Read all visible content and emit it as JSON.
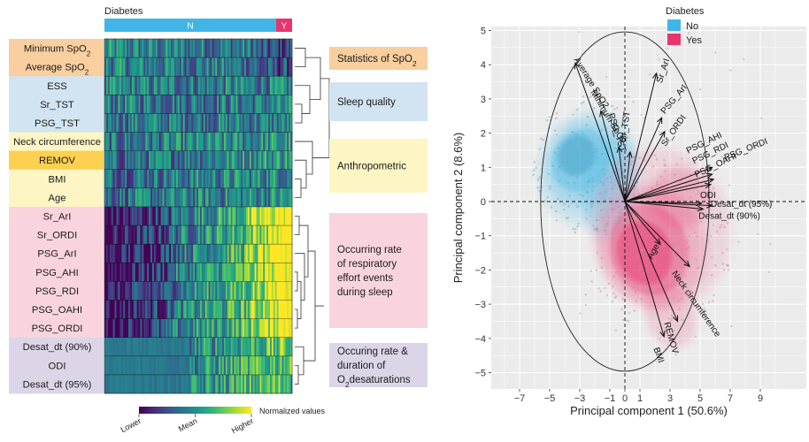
{
  "palette": {
    "viridis": [
      "#440154",
      "#482878",
      "#3e4989",
      "#31688e",
      "#26828e",
      "#1f9e89",
      "#35b779",
      "#6ece58",
      "#b5de2b",
      "#fde725"
    ],
    "diabetes_no": "#41b6e6",
    "diabetes_yes": "#e8356d",
    "group_spo2": "#f9cfa0",
    "group_sleep": "#d2e4f1",
    "group_anthro": "#fdf5c4",
    "group_remov": "#fcd050",
    "group_resp": "#f9d4de",
    "group_desat": "#dcd5e8"
  },
  "chart_data": [
    {
      "type": "heatmap",
      "top_bar": {
        "title": "Diabetes",
        "no_label": "N",
        "yes_label": "Y",
        "no_fraction": 0.915
      },
      "rows": [
        {
          "label": "Minimum SpO",
          "sub": "2",
          "group": "spo2"
        },
        {
          "label": "Average SpO",
          "sub": "2",
          "group": "spo2"
        },
        {
          "label": "ESS",
          "sub": "",
          "group": "sleep"
        },
        {
          "label": "Sr_TST",
          "sub": "",
          "group": "sleep"
        },
        {
          "label": "PSG_TST",
          "sub": "",
          "group": "sleep"
        },
        {
          "label": "Neck circumference",
          "sub": "",
          "group": "anthro"
        },
        {
          "label": "REMOV",
          "sub": "",
          "group": "remov"
        },
        {
          "label": "BMI",
          "sub": "",
          "group": "anthro"
        },
        {
          "label": "Age",
          "sub": "",
          "group": "anthro"
        },
        {
          "label": "Sr_ArI",
          "sub": "",
          "group": "resp"
        },
        {
          "label": "Sr_ORDI",
          "sub": "",
          "group": "resp"
        },
        {
          "label": "PSG_ArI",
          "sub": "",
          "group": "resp"
        },
        {
          "label": "PSG_AHI",
          "sub": "",
          "group": "resp"
        },
        {
          "label": "PSG_RDI",
          "sub": "",
          "group": "resp"
        },
        {
          "label": "PSG_OAHI",
          "sub": "",
          "group": "resp"
        },
        {
          "label": "PSG_ORDI",
          "sub": "",
          "group": "resp"
        },
        {
          "label": "Desat_dt (90%)",
          "sub": "",
          "group": "desat"
        },
        {
          "label": "ODI",
          "sub": "",
          "group": "desat"
        },
        {
          "label": "Desat_dt (95%)",
          "sub": "",
          "group": "desat"
        }
      ],
      "groups": [
        {
          "id": "spo2",
          "lines": [
            {
              "t": "Statistics of SpO",
              "sub": "2"
            }
          ]
        },
        {
          "id": "sleep",
          "lines": [
            {
              "t": "Sleep quality",
              "sub": ""
            }
          ]
        },
        {
          "id": "anthro",
          "lines": [
            {
              "t": "Anthropometric",
              "sub": ""
            }
          ]
        },
        {
          "id": "resp",
          "lines": [
            {
              "t": "Occurring rate",
              "sub": ""
            },
            {
              "t": "of respiratory",
              "sub": ""
            },
            {
              "t": "effort events",
              "sub": ""
            },
            {
              "t": "during sleep",
              "sub": ""
            }
          ]
        },
        {
          "id": "desat",
          "lines": [
            {
              "t": "Occuring rate &",
              "sub": ""
            },
            {
              "t": "duration of",
              "sub": ""
            },
            {
              "t": "O",
              "sub": "2",
              "tail": "desaturations"
            }
          ]
        }
      ],
      "legend": {
        "title": "Normalized values",
        "ticks": [
          "Lower",
          "Mean",
          "Higher"
        ]
      }
    },
    {
      "type": "scatter",
      "subtype": "pca-biplot",
      "legend": {
        "title": "Diabetes",
        "entries": [
          "No",
          "Yes"
        ],
        "placement": "top"
      },
      "xlabel": "Principal component 1 (50.6%)",
      "ylabel": "Principal component 2 (8.6%)",
      "xlim": [
        -8.5,
        10.5
      ],
      "ylim": [
        -5.2,
        5.2
      ],
      "xticks": [
        "−7",
        "−5",
        "−3",
        "−1",
        "0",
        "1",
        "3",
        "5",
        "7",
        "9"
      ],
      "yticks": [
        "5",
        "4",
        "3",
        "2",
        "1",
        "0",
        "−1",
        "−2",
        "−3",
        "−4",
        "−5"
      ],
      "circle_radius": 5.5,
      "loadings": [
        {
          "name": "Average SpO2",
          "x": -3.3,
          "y": 4.05
        },
        {
          "name": "Minimum SpO2",
          "x": -1.6,
          "y": 2.65
        },
        {
          "name": "PSG_TST",
          "x": -0.4,
          "y": 1.6
        },
        {
          "name": "Sr_TST",
          "x": 0.35,
          "y": 1.45
        },
        {
          "name": "Sr_ArI",
          "x": 2.1,
          "y": 3.75
        },
        {
          "name": "PSG_ArI",
          "x": 2.45,
          "y": 2.45
        },
        {
          "name": "Sr_ORDI",
          "x": 2.65,
          "y": 2.05
        },
        {
          "name": "PSG_AHI",
          "x": 5.8,
          "y": 1.0
        },
        {
          "name": "PSG_RDI",
          "x": 5.8,
          "y": 0.8
        },
        {
          "name": "PSG_ORDI",
          "x": 5.9,
          "y": 0.65
        },
        {
          "name": "PSG_OAHI",
          "x": 5.7,
          "y": 0.5
        },
        {
          "name": "ODI",
          "x": 5.1,
          "y": -0.05
        },
        {
          "name": "Desat_dt (95%)",
          "x": 5.8,
          "y": -0.12
        },
        {
          "name": "Desat_dt (90%)",
          "x": 5.2,
          "y": -0.22
        },
        {
          "name": "Age",
          "x": 2.35,
          "y": -1.25
        },
        {
          "name": "Neck circumference",
          "x": 4.3,
          "y": -1.9
        },
        {
          "name": "REMOV",
          "x": 3.5,
          "y": -3.5
        },
        {
          "name": "BMI",
          "x": 2.6,
          "y": -3.95
        }
      ],
      "loading_labels": [
        {
          "text": "Average SpO2",
          "x": -3.4,
          "y": 4.15,
          "rot": 58
        },
        {
          "text": "Minimum SpO2",
          "x": -2.3,
          "y": 3.2,
          "rot": 59
        },
        {
          "text": "PSG_TST",
          "x": -1.1,
          "y": 2.55,
          "rot": 72
        },
        {
          "text": "Sr_TST",
          "x": 0.05,
          "y": 1.75,
          "rot": -82
        },
        {
          "text": "Sr_ArI",
          "x": 2.45,
          "y": 3.45,
          "rot": -72
        },
        {
          "text": "PSG_ArI",
          "x": 2.65,
          "y": 2.55,
          "rot": -50
        },
        {
          "text": "Sr_ORDI",
          "x": 2.7,
          "y": 1.6,
          "rot": -55
        },
        {
          "text": "PSG_AHI",
          "x": 4.2,
          "y": 1.4,
          "rot": -26
        },
        {
          "text": "PSG_RDI",
          "x": 4.6,
          "y": 1.1,
          "rot": -26
        },
        {
          "text": "PSG_OAHI",
          "x": 4.75,
          "y": 0.7,
          "rot": -26
        },
        {
          "text": "PSG_ORDI",
          "x": 6.7,
          "y": 1.2,
          "rot": -22
        },
        {
          "text": "ODI",
          "x": 5.0,
          "y": 0.1,
          "rot": 0
        },
        {
          "text": "Desat_dt (95%)",
          "x": 5.7,
          "y": -0.15,
          "rot": 0
        },
        {
          "text": "Desat_dt (90%)",
          "x": 4.9,
          "y": -0.5,
          "rot": 0
        },
        {
          "text": "Age",
          "x": 1.8,
          "y": -1.7,
          "rot": -62
        },
        {
          "text": "Neck circumference",
          "x": 3.1,
          "y": -2.1,
          "rot": 55
        },
        {
          "text": "REMOV",
          "x": 2.6,
          "y": -3.55,
          "rot": 74
        },
        {
          "text": "BMI",
          "x": 1.9,
          "y": -4.3,
          "rot": 70
        }
      ]
    }
  ]
}
